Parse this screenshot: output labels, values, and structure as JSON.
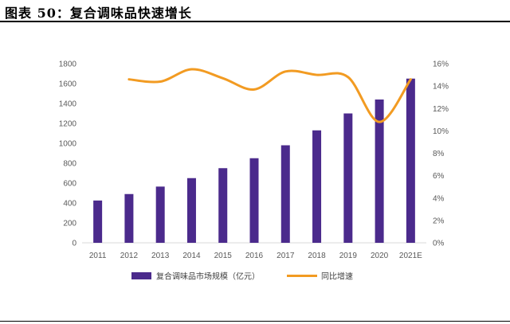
{
  "figure": {
    "title": "图表 50：复合调味品快速增长"
  },
  "colors": {
    "bar": "#4B2A8C",
    "line": "#F29B22",
    "axis": "#D9D9D9",
    "text": "#595959"
  },
  "chart_data": {
    "type": "bar+line",
    "title": "图表 50：复合调味品快速增长",
    "categories": [
      "2011",
      "2012",
      "2013",
      "2014",
      "2015",
      "2016",
      "2017",
      "2018",
      "2019",
      "2020",
      "2021E"
    ],
    "series": [
      {
        "name": "复合调味品市场规模（亿元）",
        "type": "bar",
        "axis": "left",
        "values": [
          425,
          490,
          565,
          650,
          750,
          850,
          980,
          1130,
          1300,
          1440,
          1650
        ]
      },
      {
        "name": "同比增速",
        "type": "line",
        "axis": "right",
        "smooth": true,
        "values": [
          null,
          14.6,
          14.4,
          15.5,
          14.7,
          13.7,
          15.3,
          15.0,
          14.8,
          10.8,
          14.6
        ]
      }
    ],
    "y_left": {
      "min": 0,
      "max": 1800,
      "step": 200,
      "ticks": [
        "0",
        "200",
        "400",
        "600",
        "800",
        "1000",
        "1200",
        "1400",
        "1600",
        "1800"
      ]
    },
    "y_right": {
      "min": 0,
      "max": 16,
      "step": 2,
      "ticks": [
        "0%",
        "2%",
        "4%",
        "6%",
        "8%",
        "10%",
        "12%",
        "14%",
        "16%"
      ]
    },
    "legend": {
      "position": "bottom",
      "items": [
        "复合调味品市场规模（亿元）",
        "同比增速"
      ]
    }
  }
}
